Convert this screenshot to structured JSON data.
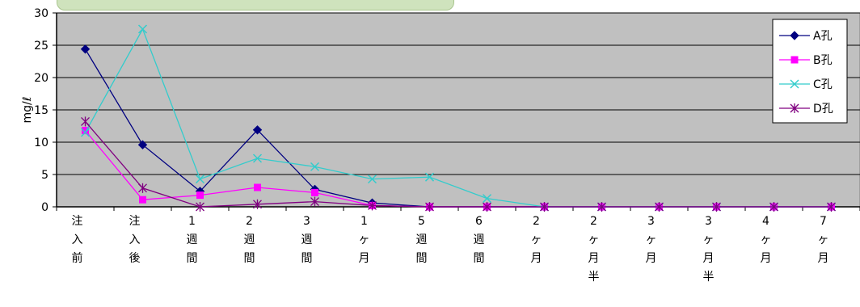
{
  "chart_data": {
    "type": "line",
    "ylabel": "mg/ℓ",
    "ylim": [
      0,
      30
    ],
    "yticks": [
      0,
      5,
      10,
      15,
      20,
      25,
      30
    ],
    "grid": true,
    "legend_position": "top-right",
    "plot_background": "#c0c0c0",
    "categories": [
      [
        "注",
        "入",
        "前"
      ],
      [
        "注",
        "入",
        "後"
      ],
      [
        "1",
        "週",
        "間"
      ],
      [
        "2",
        "週",
        "間"
      ],
      [
        "3",
        "週",
        "間"
      ],
      [
        "1",
        "ヶ",
        "月"
      ],
      [
        "5",
        "週",
        "間"
      ],
      [
        "6",
        "週",
        "間"
      ],
      [
        "2",
        "ヶ",
        "月"
      ],
      [
        "2",
        "ヶ",
        "月",
        "半"
      ],
      [
        "3",
        "ヶ",
        "月"
      ],
      [
        "3",
        "ヶ",
        "月",
        "半"
      ],
      [
        "4",
        "ヶ",
        "月"
      ],
      [
        "7",
        "ヶ",
        "月"
      ]
    ],
    "series": [
      {
        "name": "A孔",
        "color": "#000080",
        "marker": "diamond",
        "values": [
          24.4,
          9.6,
          2.4,
          11.9,
          2.7,
          0.6,
          0,
          0,
          0,
          0,
          0,
          0,
          0,
          0
        ]
      },
      {
        "name": "B孔",
        "color": "#ff00ff",
        "marker": "square",
        "values": [
          11.8,
          1.1,
          1.8,
          3.0,
          2.2,
          0.2,
          0,
          0,
          0,
          0,
          0,
          0,
          0,
          0
        ]
      },
      {
        "name": "C孔",
        "color": "#33cccc",
        "marker": "x",
        "values": [
          11.5,
          27.5,
          4.3,
          7.5,
          6.2,
          4.3,
          4.6,
          1.3,
          0,
          0,
          0,
          0,
          0,
          0
        ]
      },
      {
        "name": "D孔",
        "color": "#800080",
        "marker": "asterisk",
        "values": [
          13.2,
          2.9,
          0,
          0.4,
          0.8,
          0.2,
          0,
          0,
          0,
          0,
          0,
          0,
          0,
          0
        ]
      }
    ]
  }
}
